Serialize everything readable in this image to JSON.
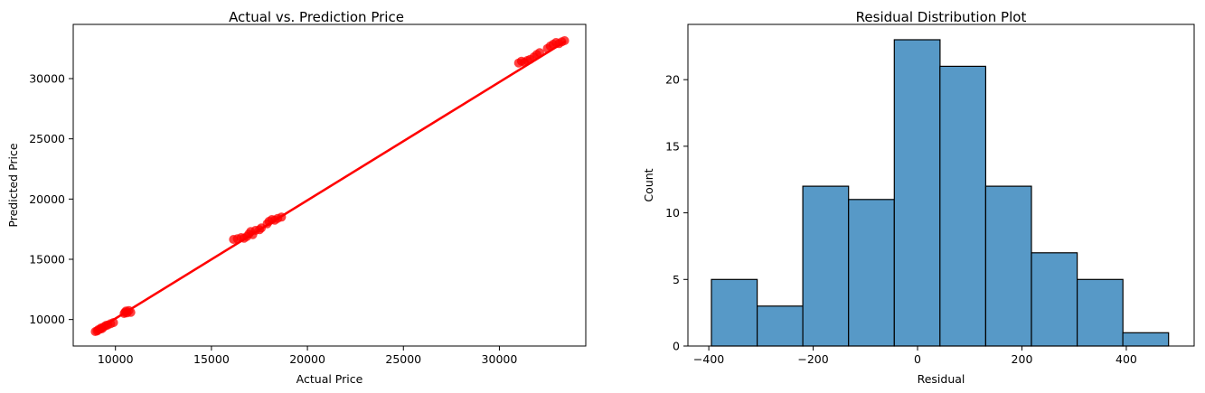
{
  "chart_data": [
    {
      "type": "scatter",
      "title": "Actual vs. Prediction Price",
      "xlabel": "Actual Price",
      "ylabel": "Predicted Price",
      "xlim": [
        7800,
        34500
      ],
      "ylim": [
        7800,
        34500
      ],
      "xticks": [
        10000,
        15000,
        20000,
        25000,
        30000
      ],
      "yticks": [
        10000,
        15000,
        20000,
        25000,
        30000
      ],
      "grid": false,
      "point_color": "#ff0000",
      "line_color": "#ff0000",
      "regression_line": {
        "x": [
          8950,
          33450
        ],
        "y": [
          9050,
          33100
        ]
      },
      "series": [
        {
          "x": [
            8950,
            9050,
            9100,
            9200,
            9250,
            9300,
            9400,
            9500,
            9600,
            9750,
            9900,
            10450,
            10500,
            10550,
            10600,
            10700,
            10800,
            16150,
            16350,
            16550,
            16700,
            16850,
            16950,
            17050,
            17150,
            17300,
            17500,
            17600,
            17900,
            18000,
            18150,
            18300,
            18450,
            18650,
            31000,
            31150,
            31300,
            31450,
            31600,
            31800,
            31950,
            32100,
            32500,
            32650,
            32800,
            32950,
            33100,
            33250,
            33400
          ],
          "y": [
            9000,
            9050,
            9150,
            9200,
            9300,
            9250,
            9400,
            9500,
            9550,
            9650,
            9750,
            10500,
            10600,
            10700,
            10550,
            10750,
            10600,
            16650,
            16700,
            16800,
            16750,
            16900,
            17100,
            17300,
            17050,
            17400,
            17450,
            17600,
            17950,
            18150,
            18300,
            18250,
            18400,
            18500,
            31300,
            31450,
            31350,
            31500,
            31600,
            31800,
            32000,
            32150,
            32500,
            32700,
            32850,
            33000,
            32900,
            33050,
            33150
          ]
        }
      ]
    },
    {
      "type": "histogram",
      "title": "Residual Distribution Plot",
      "xlabel": "Residual",
      "ylabel": "Count",
      "xlim": [
        -440,
        530
      ],
      "ylim": [
        0,
        24.15
      ],
      "xticks": [
        -400,
        -200,
        0,
        200,
        400
      ],
      "xtick_labels": [
        "−400",
        "−200",
        "0",
        "200",
        "400"
      ],
      "yticks": [
        0,
        5,
        10,
        15,
        20
      ],
      "grid": false,
      "bar_color": "#5799c7",
      "bin_edges": [
        -395,
        -307.4,
        -219.8,
        -132.2,
        -44.6,
        43,
        130.6,
        218.2,
        305.8,
        393.4,
        481
      ],
      "counts": [
        5,
        3,
        12,
        11,
        23,
        21,
        12,
        7,
        5,
        1
      ]
    }
  ]
}
